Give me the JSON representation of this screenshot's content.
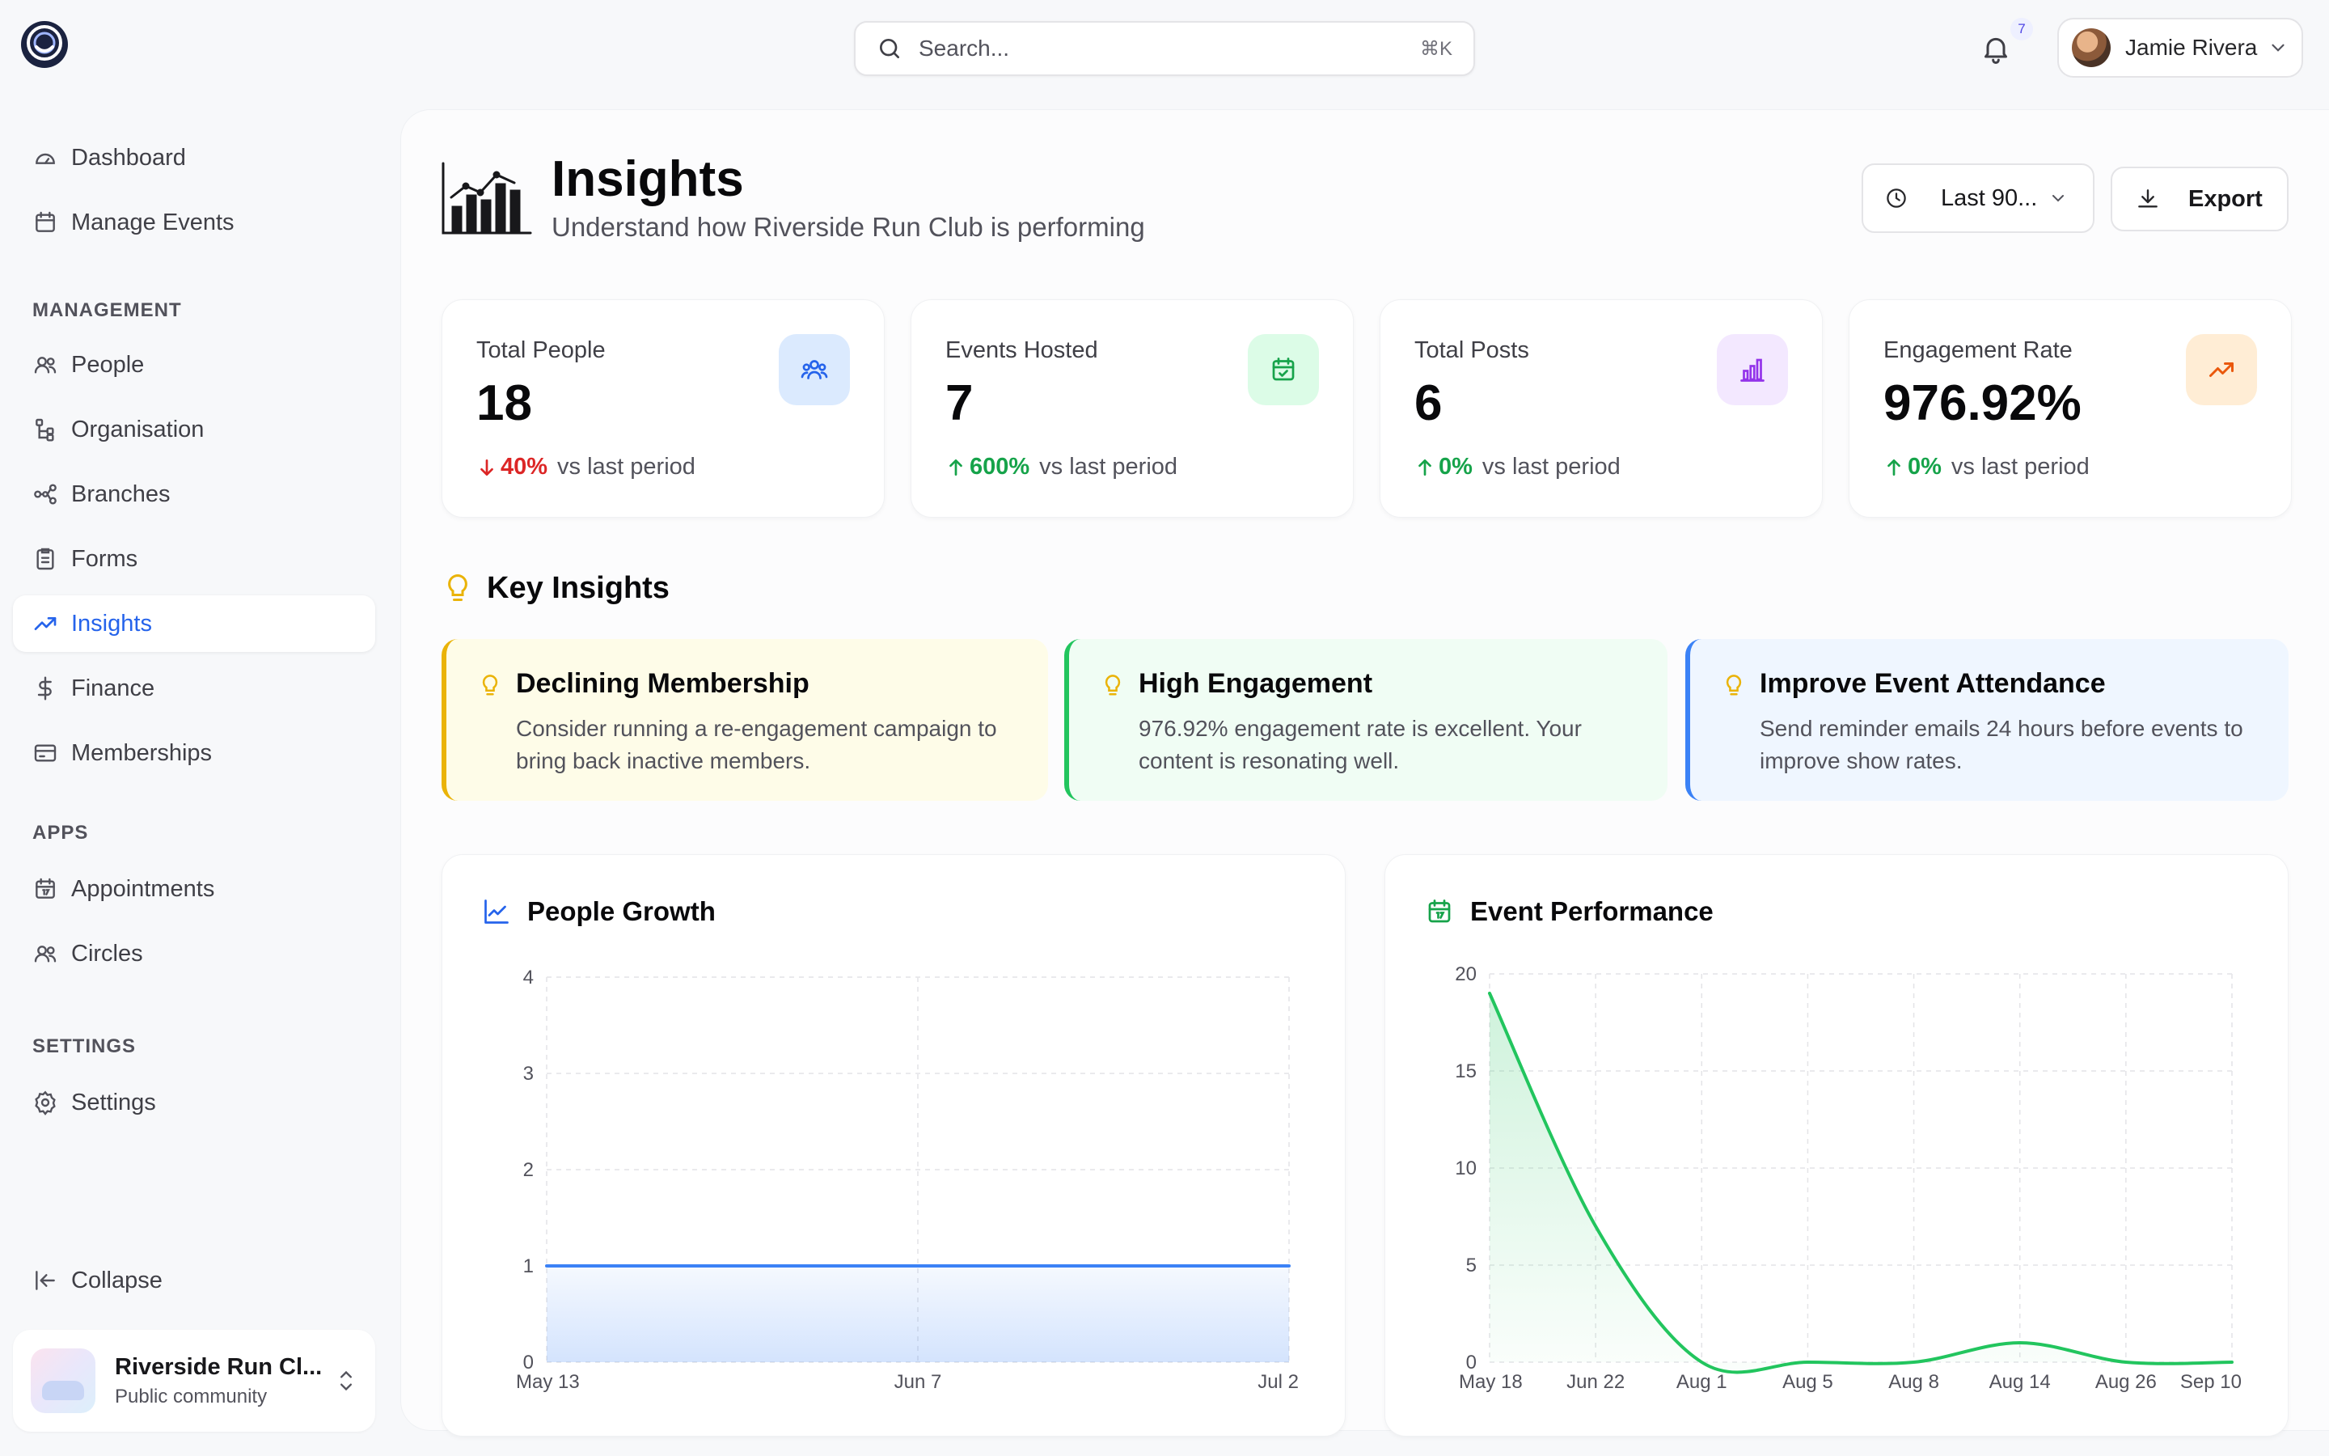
{
  "header": {
    "search_placeholder": "Search...",
    "search_shortcut": "⌘K",
    "notification_count": "7",
    "user_name": "Jamie Rivera"
  },
  "sidebar": {
    "top_items": [
      {
        "label": "Dashboard",
        "icon": "gauge-icon"
      },
      {
        "label": "Manage Events",
        "icon": "calendar-icon"
      }
    ],
    "sections": [
      {
        "label": "MANAGEMENT"
      },
      {
        "label": "APPS"
      },
      {
        "label": "SETTINGS"
      }
    ],
    "management_items": [
      {
        "label": "People",
        "icon": "users-icon"
      },
      {
        "label": "Organisation",
        "icon": "org-chart-icon"
      },
      {
        "label": "Branches",
        "icon": "branches-icon"
      },
      {
        "label": "Forms",
        "icon": "clipboard-icon"
      },
      {
        "label": "Insights",
        "icon": "trend-icon",
        "active": true
      },
      {
        "label": "Finance",
        "icon": "dollar-icon"
      },
      {
        "label": "Memberships",
        "icon": "card-icon"
      }
    ],
    "apps_items": [
      {
        "label": "Appointments",
        "icon": "calendar-date-icon"
      },
      {
        "label": "Circles",
        "icon": "users-icon"
      }
    ],
    "settings_items": [
      {
        "label": "Settings",
        "icon": "gear-icon"
      }
    ],
    "collapse_label": "Collapse",
    "org": {
      "name": "Riverside Run Cl...",
      "subtitle": "Public community"
    }
  },
  "page": {
    "title": "Insights",
    "subtitle": "Understand how Riverside Run Club is performing",
    "range_label": "Last 90...",
    "export_label": "Export"
  },
  "stats": [
    {
      "label": "Total People",
      "value": "18",
      "change": "40%",
      "direction": "down",
      "suffix": "vs last period",
      "color": "#dc2626",
      "icon_bg": "#dbeafe",
      "icon_color": "#2563eb",
      "icon": "users-icon"
    },
    {
      "label": "Events Hosted",
      "value": "7",
      "change": "600%",
      "direction": "up",
      "suffix": "vs last period",
      "color": "#16a34a",
      "icon_bg": "#dcfce7",
      "icon_color": "#16a34a",
      "icon": "calendar-check-icon"
    },
    {
      "label": "Total Posts",
      "value": "6",
      "change": "0%",
      "direction": "up",
      "suffix": "vs last period",
      "color": "#16a34a",
      "icon_bg": "#f3e8ff",
      "icon_color": "#9333ea",
      "icon": "bar-chart-icon"
    },
    {
      "label": "Engagement Rate",
      "value": "976.92%",
      "change": "0%",
      "direction": "up",
      "suffix": "vs last period",
      "color": "#16a34a",
      "icon_bg": "#ffedd5",
      "icon_color": "#ea580c",
      "icon": "trending-up-icon"
    }
  ],
  "key_insights": {
    "title": "Key Insights",
    "items": [
      {
        "title": "Declining Membership",
        "description": "Consider running a re-engagement campaign to bring back inactive members.",
        "bg": "#fefce8",
        "border": "#eab308"
      },
      {
        "title": "High Engagement",
        "description": "976.92% engagement rate is excellent. Your content is resonating well.",
        "bg": "#f0fdf4",
        "border": "#22c55e"
      },
      {
        "title": "Improve Event Attendance",
        "description": "Send reminder emails 24 hours before events to improve show rates.",
        "bg": "#eff6ff",
        "border": "#3b82f6"
      }
    ]
  },
  "charts": {
    "people_growth_title": "People Growth",
    "event_performance_title": "Event Performance"
  },
  "chart_data": [
    {
      "type": "area",
      "title": "People Growth",
      "x": [
        "May 13",
        "Jun 7",
        "Jul 2"
      ],
      "series": [
        {
          "values": [
            1,
            1,
            1
          ]
        }
      ],
      "yticks": [
        0,
        1,
        2,
        3,
        4
      ],
      "ylim": [
        0,
        4
      ],
      "grid": true,
      "color": "#3b82f6"
    },
    {
      "type": "area",
      "title": "Event Performance",
      "x": [
        "May 18",
        "Jun 22",
        "Aug 1",
        "Aug 5",
        "Aug 8",
        "Aug 14",
        "Aug 26",
        "Sep 10"
      ],
      "series": [
        {
          "values": [
            19,
            7,
            0,
            0,
            0,
            1,
            0,
            0
          ]
        }
      ],
      "yticks": [
        0,
        5,
        10,
        15,
        20
      ],
      "ylim": [
        0,
        20
      ],
      "grid": true,
      "color": "#22c55e"
    }
  ]
}
